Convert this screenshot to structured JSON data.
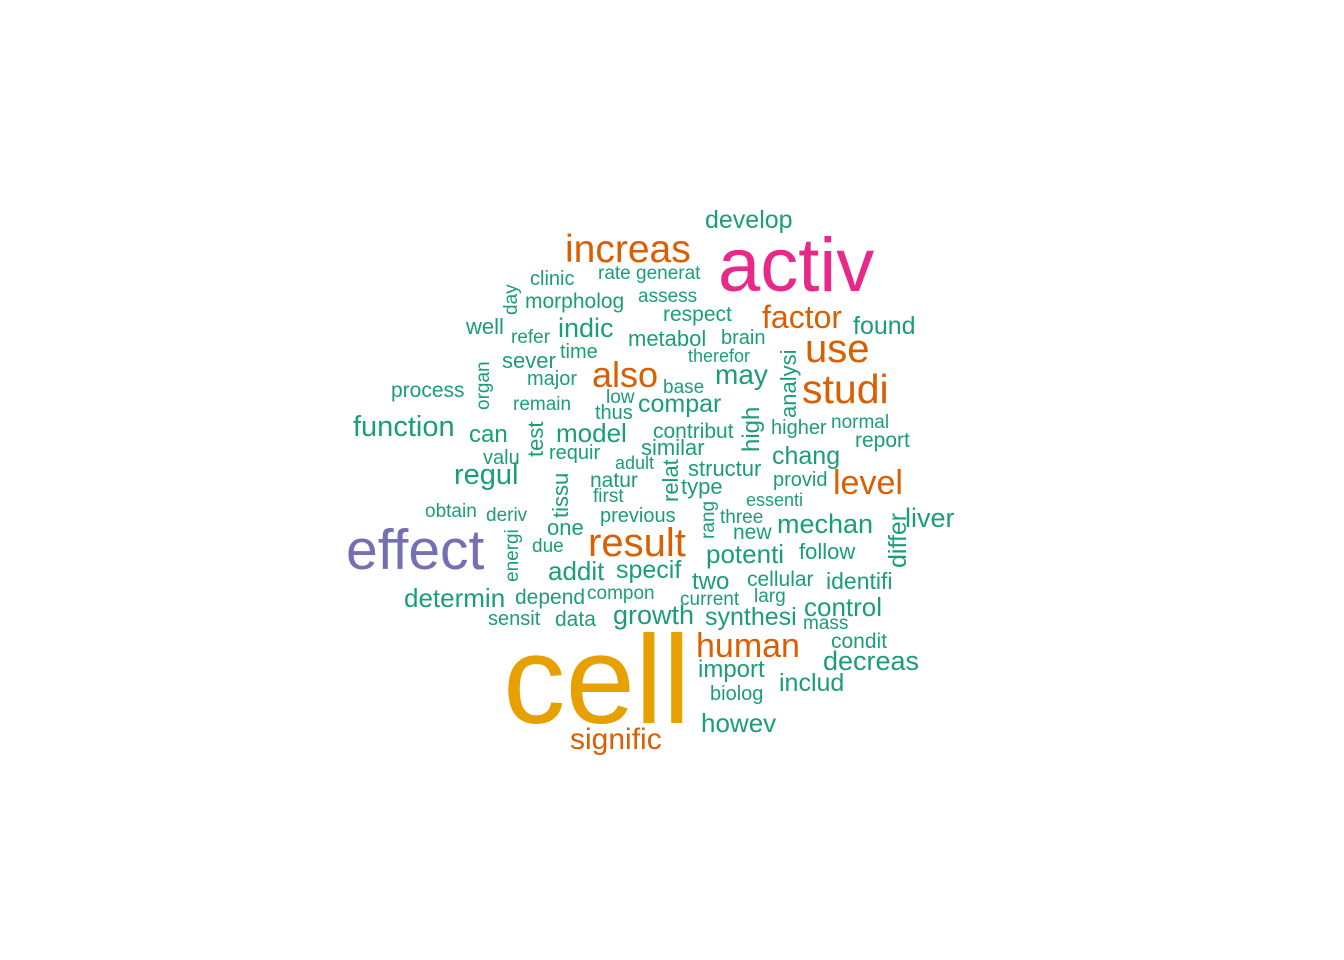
{
  "colors": {
    "background": "#ffffff",
    "tier1": "#1b9e77",
    "tier2": "#d95f02",
    "tier3": "#7570b3",
    "tier4": "#e7298a",
    "tier5": "#e6a100"
  },
  "words": [
    {
      "text": "cell",
      "color": "#e6a100"
    },
    {
      "text": "activ",
      "color": "#e7298a"
    },
    {
      "text": "effect",
      "color": "#7570b3"
    },
    {
      "text": "increas",
      "color": "#d95f02"
    },
    {
      "text": "studi",
      "color": "#d95f02"
    },
    {
      "text": "use",
      "color": "#d95f02"
    },
    {
      "text": "result",
      "color": "#d95f02"
    },
    {
      "text": "also",
      "color": "#d95f02"
    },
    {
      "text": "factor",
      "color": "#d95f02"
    },
    {
      "text": "level",
      "color": "#d95f02"
    },
    {
      "text": "human",
      "color": "#d95f02"
    },
    {
      "text": "signific",
      "color": "#d95f02"
    },
    {
      "text": "develop",
      "color": "#1b9e77"
    },
    {
      "text": "clinic",
      "color": "#1b9e77"
    },
    {
      "text": "rate",
      "color": "#1b9e77"
    },
    {
      "text": "generat",
      "color": "#1b9e77"
    },
    {
      "text": "day",
      "color": "#1b9e77"
    },
    {
      "text": "morpholog",
      "color": "#1b9e77"
    },
    {
      "text": "assess",
      "color": "#1b9e77"
    },
    {
      "text": "respect",
      "color": "#1b9e77"
    },
    {
      "text": "well",
      "color": "#1b9e77"
    },
    {
      "text": "refer",
      "color": "#1b9e77"
    },
    {
      "text": "indic",
      "color": "#1b9e77"
    },
    {
      "text": "metabol",
      "color": "#1b9e77"
    },
    {
      "text": "brain",
      "color": "#1b9e77"
    },
    {
      "text": "found",
      "color": "#1b9e77"
    },
    {
      "text": "time",
      "color": "#1b9e77"
    },
    {
      "text": "sever",
      "color": "#1b9e77"
    },
    {
      "text": "therefor",
      "color": "#1b9e77"
    },
    {
      "text": "organ",
      "color": "#1b9e77"
    },
    {
      "text": "analysi",
      "color": "#1b9e77"
    },
    {
      "text": "may",
      "color": "#1b9e77"
    },
    {
      "text": "major",
      "color": "#1b9e77"
    },
    {
      "text": "base",
      "color": "#1b9e77"
    },
    {
      "text": "process",
      "color": "#1b9e77"
    },
    {
      "text": "low",
      "color": "#1b9e77"
    },
    {
      "text": "remain",
      "color": "#1b9e77"
    },
    {
      "text": "thus",
      "color": "#1b9e77"
    },
    {
      "text": "compar",
      "color": "#1b9e77"
    },
    {
      "text": "high",
      "color": "#1b9e77"
    },
    {
      "text": "normal",
      "color": "#1b9e77"
    },
    {
      "text": "higher",
      "color": "#1b9e77"
    },
    {
      "text": "function",
      "color": "#1b9e77"
    },
    {
      "text": "test",
      "color": "#1b9e77"
    },
    {
      "text": "can",
      "color": "#1b9e77"
    },
    {
      "text": "model",
      "color": "#1b9e77"
    },
    {
      "text": "contribut",
      "color": "#1b9e77"
    },
    {
      "text": "report",
      "color": "#1b9e77"
    },
    {
      "text": "similar",
      "color": "#1b9e77"
    },
    {
      "text": "requir",
      "color": "#1b9e77"
    },
    {
      "text": "valu",
      "color": "#1b9e77"
    },
    {
      "text": "chang",
      "color": "#1b9e77"
    },
    {
      "text": "adult",
      "color": "#1b9e77"
    },
    {
      "text": "relat",
      "color": "#1b9e77"
    },
    {
      "text": "structur",
      "color": "#1b9e77"
    },
    {
      "text": "regul",
      "color": "#1b9e77"
    },
    {
      "text": "natur",
      "color": "#1b9e77"
    },
    {
      "text": "provid",
      "color": "#1b9e77"
    },
    {
      "text": "tissu",
      "color": "#1b9e77"
    },
    {
      "text": "type",
      "color": "#1b9e77"
    },
    {
      "text": "first",
      "color": "#1b9e77"
    },
    {
      "text": "essenti",
      "color": "#1b9e77"
    },
    {
      "text": "obtain",
      "color": "#1b9e77"
    },
    {
      "text": "deriv",
      "color": "#1b9e77"
    },
    {
      "text": "previous",
      "color": "#1b9e77"
    },
    {
      "text": "rang",
      "color": "#1b9e77"
    },
    {
      "text": "three",
      "color": "#1b9e77"
    },
    {
      "text": "liver",
      "color": "#1b9e77"
    },
    {
      "text": "one",
      "color": "#1b9e77"
    },
    {
      "text": "new",
      "color": "#1b9e77"
    },
    {
      "text": "mechan",
      "color": "#1b9e77"
    },
    {
      "text": "differ",
      "color": "#1b9e77"
    },
    {
      "text": "energi",
      "color": "#1b9e77"
    },
    {
      "text": "due",
      "color": "#1b9e77"
    },
    {
      "text": "potenti",
      "color": "#1b9e77"
    },
    {
      "text": "follow",
      "color": "#1b9e77"
    },
    {
      "text": "addit",
      "color": "#1b9e77"
    },
    {
      "text": "specif",
      "color": "#1b9e77"
    },
    {
      "text": "two",
      "color": "#1b9e77"
    },
    {
      "text": "cellular",
      "color": "#1b9e77"
    },
    {
      "text": "identifi",
      "color": "#1b9e77"
    },
    {
      "text": "determin",
      "color": "#1b9e77"
    },
    {
      "text": "depend",
      "color": "#1b9e77"
    },
    {
      "text": "compon",
      "color": "#1b9e77"
    },
    {
      "text": "current",
      "color": "#1b9e77"
    },
    {
      "text": "larg",
      "color": "#1b9e77"
    },
    {
      "text": "control",
      "color": "#1b9e77"
    },
    {
      "text": "sensit",
      "color": "#1b9e77"
    },
    {
      "text": "data",
      "color": "#1b9e77"
    },
    {
      "text": "growth",
      "color": "#1b9e77"
    },
    {
      "text": "synthesi",
      "color": "#1b9e77"
    },
    {
      "text": "mass",
      "color": "#1b9e77"
    },
    {
      "text": "condit",
      "color": "#1b9e77"
    },
    {
      "text": "decreas",
      "color": "#1b9e77"
    },
    {
      "text": "import",
      "color": "#1b9e77"
    },
    {
      "text": "includ",
      "color": "#1b9e77"
    },
    {
      "text": "biolog",
      "color": "#1b9e77"
    },
    {
      "text": "howev",
      "color": "#1b9e77"
    }
  ]
}
